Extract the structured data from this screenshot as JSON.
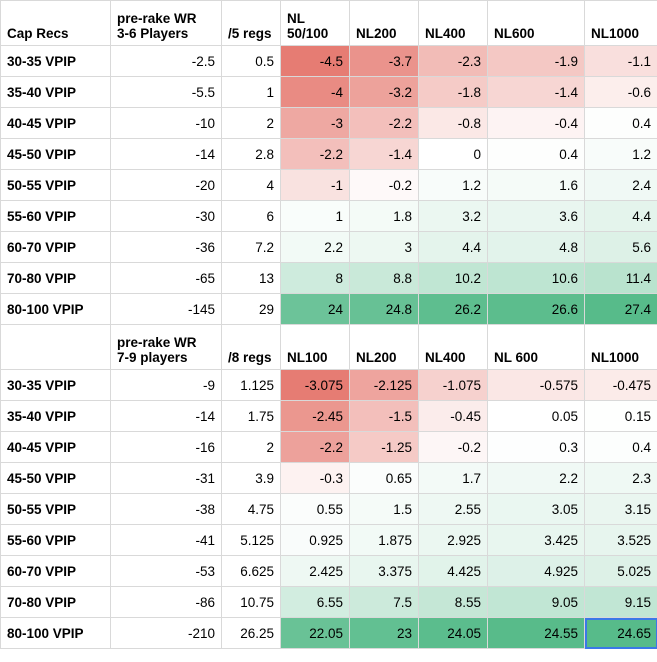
{
  "tables": [
    {
      "headers": [
        "Cap Recs",
        "pre-rake WR\n3-6 Players",
        "/5 regs",
        "NL\n50/100",
        "NL200",
        "NL400",
        "NL600",
        "NL1000"
      ],
      "rows": [
        {
          "label": "30-35 VPIP",
          "wr": "-2.5",
          "regs": "0.5",
          "vals": [
            "-4.5",
            "-3.7",
            "-2.3",
            "-1.9",
            "-1.1"
          ]
        },
        {
          "label": "35-40 VPIP",
          "wr": "-5.5",
          "regs": "1",
          "vals": [
            "-4",
            "-3.2",
            "-1.8",
            "-1.4",
            "-0.6"
          ]
        },
        {
          "label": "40-45 VPIP",
          "wr": "-10",
          "regs": "2",
          "vals": [
            "-3",
            "-2.2",
            "-0.8",
            "-0.4",
            "0.4"
          ]
        },
        {
          "label": "45-50 VPIP",
          "wr": "-14",
          "regs": "2.8",
          "vals": [
            "-2.2",
            "-1.4",
            "0",
            "0.4",
            "1.2"
          ]
        },
        {
          "label": "50-55 VPIP",
          "wr": "-20",
          "regs": "4",
          "vals": [
            "-1",
            "-0.2",
            "1.2",
            "1.6",
            "2.4"
          ]
        },
        {
          "label": "55-60 VPIP",
          "wr": "-30",
          "regs": "6",
          "vals": [
            "1",
            "1.8",
            "3.2",
            "3.6",
            "4.4"
          ]
        },
        {
          "label": "60-70 VPIP",
          "wr": "-36",
          "regs": "7.2",
          "vals": [
            "2.2",
            "3",
            "4.4",
            "4.8",
            "5.6"
          ]
        },
        {
          "label": "70-80 VPIP",
          "wr": "-65",
          "regs": "13",
          "vals": [
            "8",
            "8.8",
            "10.2",
            "10.6",
            "11.4"
          ]
        },
        {
          "label": "80-100 VPIP",
          "wr": "-145",
          "regs": "29",
          "vals": [
            "24",
            "24.8",
            "26.2",
            "26.6",
            "27.4"
          ]
        }
      ]
    },
    {
      "headers": [
        "",
        "pre-rake WR\n7-9 players",
        "/8 regs",
        "NL100",
        "NL200",
        "NL400",
        "NL 600",
        "NL1000"
      ],
      "rows": [
        {
          "label": "30-35 VPIP",
          "wr": "-9",
          "regs": "1.125",
          "vals": [
            "-3.075",
            "-2.125",
            "-1.075",
            "-0.575",
            "-0.475"
          ]
        },
        {
          "label": "35-40 VPIP",
          "wr": "-14",
          "regs": "1.75",
          "vals": [
            "-2.45",
            "-1.5",
            "-0.45",
            "0.05",
            "0.15"
          ]
        },
        {
          "label": "40-45 VPIP",
          "wr": "-16",
          "regs": "2",
          "vals": [
            "-2.2",
            "-1.25",
            "-0.2",
            "0.3",
            "0.4"
          ]
        },
        {
          "label": "45-50 VPIP",
          "wr": "-31",
          "regs": "3.9",
          "vals": [
            "-0.3",
            "0.65",
            "1.7",
            "2.2",
            "2.3"
          ]
        },
        {
          "label": "50-55 VPIP",
          "wr": "-38",
          "regs": "4.75",
          "vals": [
            "0.55",
            "1.5",
            "2.55",
            "3.05",
            "3.15"
          ]
        },
        {
          "label": "55-60 VPIP",
          "wr": "-41",
          "regs": "5.125",
          "vals": [
            "0.925",
            "1.875",
            "2.925",
            "3.425",
            "3.525"
          ]
        },
        {
          "label": "60-70 VPIP",
          "wr": "-53",
          "regs": "6.625",
          "vals": [
            "2.425",
            "3.375",
            "4.425",
            "4.925",
            "5.025"
          ]
        },
        {
          "label": "70-80 VPIP",
          "wr": "-86",
          "regs": "10.75",
          "vals": [
            "6.55",
            "7.5",
            "8.55",
            "9.05",
            "9.15"
          ]
        },
        {
          "label": "80-100 VPIP",
          "wr": "-210",
          "regs": "26.25",
          "vals": [
            "22.05",
            "23",
            "24.05",
            "24.55",
            "24.65"
          ]
        }
      ]
    }
  ],
  "colors": {
    "negative_max": "#e67c73",
    "neutral": "#ffffff",
    "positive_max": "#57bb8a",
    "grid": "#d9d9d9",
    "selection": "#3b78e7"
  },
  "selected_cell": {
    "table": 1,
    "row": 8,
    "col": 4
  }
}
